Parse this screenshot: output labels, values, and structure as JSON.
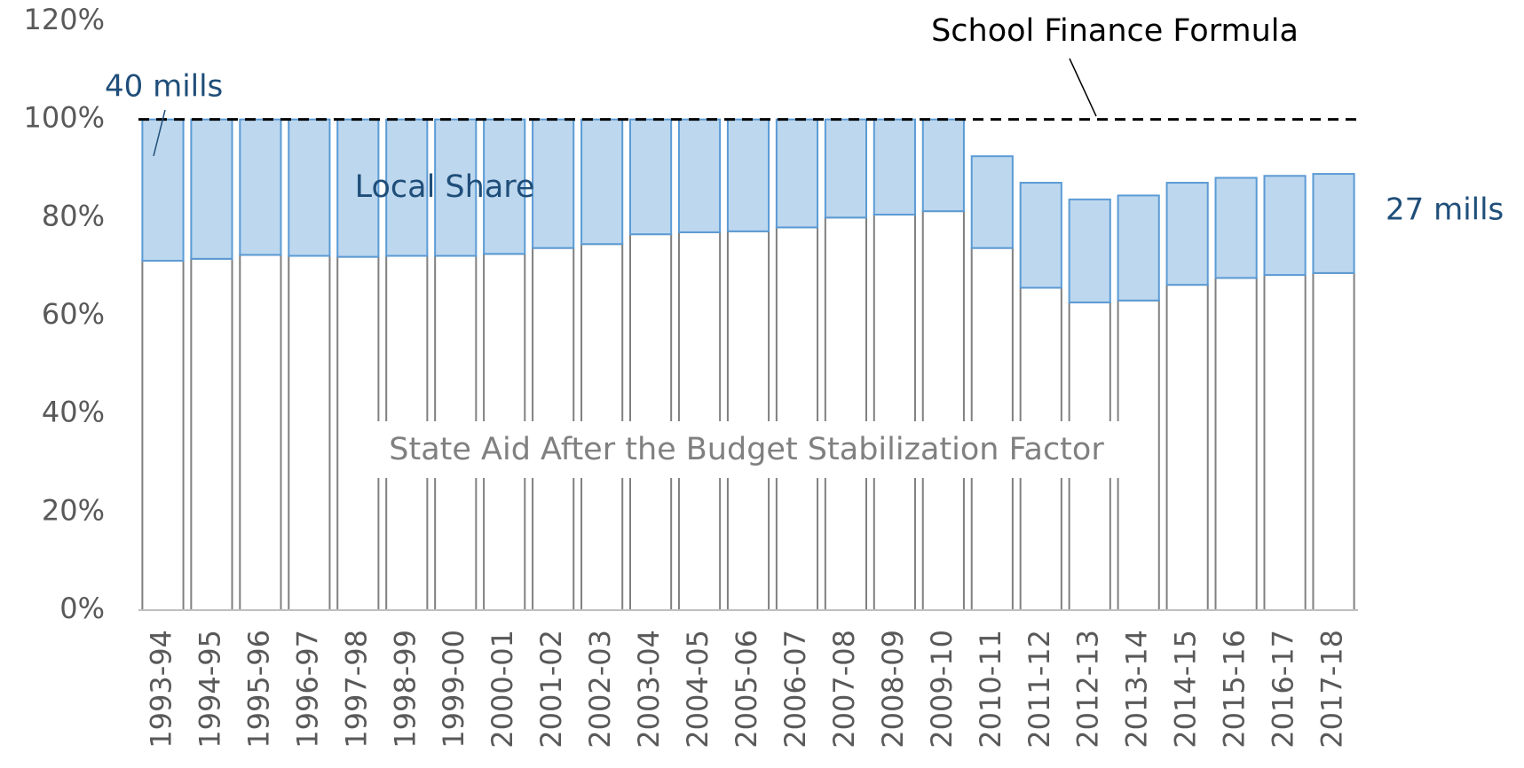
{
  "chart_data": {
    "type": "stacked_bar",
    "categories": [
      "1993-94",
      "1994-95",
      "1995-96",
      "1996-97",
      "1997-98",
      "1998-99",
      "1999-00",
      "2000-01",
      "2001-02",
      "2002-03",
      "2003-04",
      "2004-05",
      "2005-06",
      "2006-07",
      "2007-08",
      "2008-09",
      "2009-10",
      "2010-11",
      "2011-12",
      "2012-13",
      "2013-14",
      "2014-15",
      "2015-16",
      "2016-17",
      "2017-18"
    ],
    "series": [
      {
        "name": "State Aid After the Budget Stabilization Factor",
        "color": "#ffffff",
        "stroke": "#808080",
        "values": [
          71.2,
          71.6,
          72.4,
          72.2,
          72.0,
          72.2,
          72.2,
          72.6,
          73.8,
          74.6,
          76.6,
          77.0,
          77.2,
          78.0,
          80.0,
          80.6,
          81.3,
          73.8,
          65.7,
          62.7,
          63.1,
          66.3,
          67.7,
          68.3,
          68.7
        ]
      },
      {
        "name": "Local Share",
        "color": "#bdd7ee",
        "stroke": "#5b9bd5",
        "values": [
          28.8,
          28.4,
          27.6,
          27.8,
          28.0,
          27.8,
          27.8,
          27.4,
          26.2,
          25.4,
          23.4,
          23.0,
          22.8,
          22.0,
          20.0,
          19.4,
          18.7,
          18.7,
          21.4,
          21.0,
          21.4,
          20.8,
          20.4,
          20.2,
          20.2
        ]
      }
    ],
    "ylim": [
      0,
      120
    ],
    "yticks": [
      {
        "value": 0,
        "label": "0%"
      },
      {
        "value": 20,
        "label": "20%"
      },
      {
        "value": 40,
        "label": "40%"
      },
      {
        "value": 60,
        "label": "60%"
      },
      {
        "value": 80,
        "label": "80%"
      },
      {
        "value": 100,
        "label": "100%"
      },
      {
        "value": 120,
        "label": "120%"
      }
    ],
    "reference_line": {
      "value": 100,
      "label": "School Finance Formula"
    },
    "annotations": [
      "40 mills",
      "27 mills"
    ]
  }
}
